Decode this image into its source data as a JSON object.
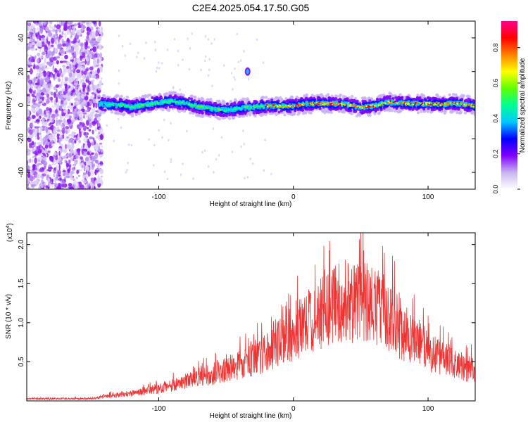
{
  "title": "C2E4.2025.054.17.50.G05",
  "chart_data": [
    {
      "type": "heatmap",
      "xlabel": "Height of straight line (km)",
      "ylabel": "Frequency (Hz)",
      "xlim": [
        -198,
        135
      ],
      "ylim": [
        -50,
        50
      ],
      "xticks": [
        -100,
        0,
        100
      ],
      "yticks": [
        -40,
        -20,
        0,
        20,
        40
      ],
      "colorbar": {
        "label": "Normalized spectral amplitude",
        "range": [
          0,
          0.95
        ],
        "ticks": [
          0,
          0.2,
          0.4,
          0.6,
          0.8
        ],
        "colors": [
          "#ffffff",
          "#c8b4f0",
          "#8000ff",
          "#0000ff",
          "#00c8ff",
          "#00ff90",
          "#60ff00",
          "#ffff00",
          "#ff8000",
          "#ff0000",
          "#ff0090"
        ]
      },
      "noise_region_end_km": -145,
      "ridge": [
        [
          -145,
          0.6
        ],
        [
          -130,
          0.3
        ],
        [
          -120,
          -1.2
        ],
        [
          -110,
          0.2
        ],
        [
          -100,
          1.5
        ],
        [
          -90,
          2.4
        ],
        [
          -80,
          1.0
        ],
        [
          -70,
          -1.0
        ],
        [
          -60,
          -2.2
        ],
        [
          -50,
          -3.0
        ],
        [
          -40,
          -1.8
        ],
        [
          -30,
          -1.2
        ],
        [
          -20,
          -0.4
        ],
        [
          -10,
          -0.6
        ],
        [
          0,
          -0.4
        ],
        [
          10,
          0.8
        ],
        [
          20,
          1.0
        ],
        [
          30,
          0.9
        ],
        [
          40,
          0.3
        ],
        [
          50,
          -1.3
        ],
        [
          60,
          -0.5
        ],
        [
          70,
          1.8
        ],
        [
          80,
          1.3
        ],
        [
          90,
          0.9
        ],
        [
          100,
          0.9
        ],
        [
          110,
          0.4
        ],
        [
          120,
          1.2
        ],
        [
          135,
          -0.6
        ]
      ],
      "blip": {
        "x": -34,
        "y": 20
      }
    },
    {
      "type": "line",
      "xlabel": "Height of straight line (km)",
      "ylabel": "SNR (10 * v/v)",
      "y_multiplier": "(x10",
      "y_multiplier_exp": "4",
      "y_multiplier_close": ")",
      "xlim": [
        -198,
        135
      ],
      "ylim": [
        0,
        2.15
      ],
      "xticks": [
        -100,
        0,
        100
      ],
      "yticks": [
        0.5,
        1.0,
        1.5,
        2.0
      ],
      "ytick_labels": [
        "0.5",
        "1.0",
        "1.5",
        "2.0"
      ],
      "color": "#ee3333",
      "envelope": [
        [
          -198,
          0.03
        ],
        [
          -150,
          0.03
        ],
        [
          -140,
          0.06
        ],
        [
          -120,
          0.1
        ],
        [
          -100,
          0.16
        ],
        [
          -80,
          0.26
        ],
        [
          -60,
          0.36
        ],
        [
          -40,
          0.48
        ],
        [
          -20,
          0.66
        ],
        [
          -5,
          0.85
        ],
        [
          10,
          1.05
        ],
        [
          20,
          1.18
        ],
        [
          30,
          1.28
        ],
        [
          40,
          1.32
        ],
        [
          50,
          1.33
        ],
        [
          60,
          1.3
        ],
        [
          70,
          1.18
        ],
        [
          80,
          0.95
        ],
        [
          90,
          0.8
        ],
        [
          100,
          0.68
        ],
        [
          110,
          0.58
        ],
        [
          120,
          0.48
        ],
        [
          135,
          0.42
        ]
      ]
    }
  ]
}
